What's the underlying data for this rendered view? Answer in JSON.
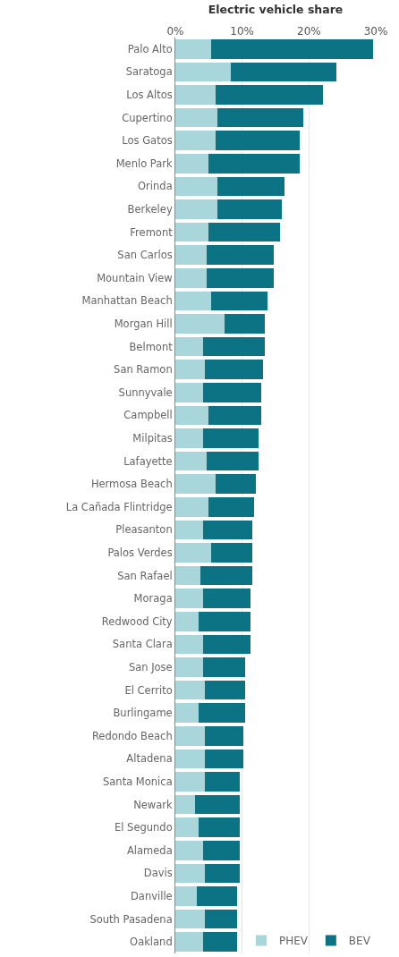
{
  "chart_data": {
    "type": "bar",
    "orientation": "horizontal",
    "stacked": true,
    "title": "Electric vehicle share",
    "categories": [
      "Palo Alto",
      "Saratoga",
      "Los Altos",
      "Cupertino",
      "Los Gatos",
      "Menlo Park",
      "Orinda",
      "Berkeley",
      "Fremont",
      "San Carlos",
      "Mountain View",
      "Manhattan Beach",
      "Morgan Hill",
      "Belmont",
      "San Ramon",
      "Sunnyvale",
      "Campbell",
      "Milpitas",
      "Lafayette",
      "Hermosa Beach",
      "La Cañada Flintridge",
      "Pleasanton",
      "Palos Verdes",
      "San Rafael",
      "Moraga",
      "Redwood City",
      "Santa Clara",
      "San Jose",
      "El Cerrito",
      "Burlingame",
      "Redondo Beach",
      "Altadena",
      "Santa Monica",
      "Newark",
      "El Segundo",
      "Alameda",
      "Davis",
      "Danville",
      "South Pasadena",
      "Oakland"
    ],
    "series": [
      {
        "name": "PHEV",
        "color": "#a9d6da",
        "values": [
          5.4,
          8.3,
          6.0,
          6.3,
          6.0,
          5.0,
          6.3,
          6.3,
          5.0,
          4.7,
          4.7,
          5.4,
          7.3,
          4.1,
          4.4,
          4.1,
          5.0,
          4.1,
          4.7,
          6.0,
          5.0,
          4.1,
          5.4,
          3.8,
          4.1,
          3.5,
          4.1,
          4.1,
          4.4,
          3.5,
          4.4,
          4.4,
          4.4,
          2.9,
          3.5,
          4.1,
          4.4,
          3.2,
          4.4,
          4.1
        ]
      },
      {
        "name": "BEV",
        "color": "#0b7383",
        "values": [
          24.2,
          15.8,
          16.1,
          12.9,
          12.6,
          13.6,
          10.0,
          9.7,
          10.7,
          10.0,
          10.0,
          8.4,
          6.1,
          9.3,
          8.7,
          8.7,
          7.8,
          8.4,
          7.8,
          6.1,
          6.8,
          7.4,
          6.1,
          7.7,
          7.1,
          7.7,
          7.1,
          6.4,
          6.1,
          7.0,
          5.8,
          5.8,
          5.2,
          6.7,
          6.1,
          5.5,
          5.2,
          6.0,
          4.8,
          5.1
        ]
      }
    ],
    "xlim": [
      0,
      30
    ],
    "xticks": [
      {
        "value": 0,
        "label": "0%"
      },
      {
        "value": 10,
        "label": "10%"
      },
      {
        "value": 20,
        "label": "20%"
      },
      {
        "value": 30,
        "label": "30%"
      }
    ],
    "grid": "x",
    "legend": "bottom right"
  }
}
